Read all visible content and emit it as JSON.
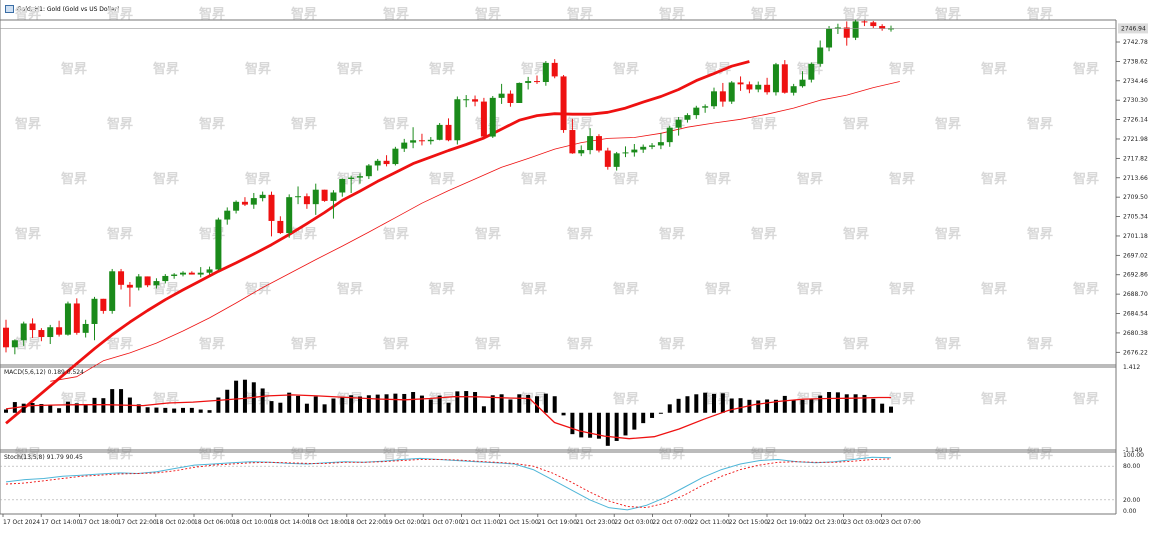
{
  "title": "Gold, H1:  Gold (Gold vs US Dollar)",
  "current_price_label": "2746.94",
  "macd_label": "MACD(5,6,12) 0.189 0.524",
  "stoch_label": "Stoch(13,5,8) 91.79 90.45",
  "watermark_text": "智昇",
  "colors": {
    "bull": "#1a8a1a",
    "bear": "#ee1111",
    "ma": "#ee1111",
    "macd_bar": "#000000",
    "signal": "#ee1111",
    "stoch_main": "#4fb6d8",
    "stoch_signal": "#ee1111",
    "grid": "#888888"
  },
  "chart_data": [
    {
      "type": "candlestick",
      "title": "Gold, H1",
      "y_ticks": [
        "2742.78",
        "2738.62",
        "2734.46",
        "2730.30",
        "2726.14",
        "2721.98",
        "2717.82",
        "2713.66",
        "2709.50",
        "2705.34",
        "2701.18",
        "2697.02",
        "2692.86",
        "2688.70",
        "2684.54",
        "2680.38",
        "2676.22"
      ],
      "ylim": [
        2673.5,
        2747.5
      ],
      "x_labels": [
        "17 Oct 2024",
        "17 Oct 14:00",
        "17 Oct 18:00",
        "17 Oct 22:00",
        "18 Oct 02:00",
        "18 Oct 06:00",
        "18 Oct 10:00",
        "18 Oct 14:00",
        "18 Oct 18:00",
        "18 Oct 22:00",
        "19 Oct 02:00",
        "21 Oct 07:00",
        "21 Oct 11:00",
        "21 Oct 15:00",
        "21 Oct 19:00",
        "21 Oct 23:00",
        "22 Oct 03:00",
        "22 Oct 07:00",
        "22 Oct 11:00",
        "22 Oct 15:00",
        "22 Oct 19:00",
        "22 Oct 23:00",
        "23 Oct 03:00",
        "23 Oct 07:00"
      ],
      "candles": [
        [
          2681.5,
          2683.2,
          2676.2,
          2677.3
        ],
        [
          2677.3,
          2679.0,
          2675.8,
          2678.8
        ],
        [
          2678.8,
          2682.8,
          2677.6,
          2682.4
        ],
        [
          2682.4,
          2683.5,
          2679.3,
          2681.0
        ],
        [
          2681.0,
          2681.4,
          2678.6,
          2679.5
        ],
        [
          2679.5,
          2682.1,
          2678.0,
          2681.6
        ],
        [
          2681.6,
          2683.0,
          2679.6,
          2680.0
        ],
        [
          2680.0,
          2687.1,
          2679.8,
          2686.7
        ],
        [
          2686.7,
          2687.8,
          2680.0,
          2680.4
        ],
        [
          2680.4,
          2683.2,
          2679.4,
          2682.3
        ],
        [
          2682.3,
          2688.1,
          2678.8,
          2687.7
        ],
        [
          2687.7,
          2687.7,
          2684.5,
          2685.1
        ],
        [
          2685.1,
          2694.1,
          2684.5,
          2693.6
        ],
        [
          2693.6,
          2694.1,
          2689.7,
          2690.7
        ],
        [
          2690.7,
          2691.3,
          2686.0,
          2690.1
        ],
        [
          2690.1,
          2693.0,
          2689.5,
          2692.5
        ],
        [
          2692.5,
          2692.5,
          2690.2,
          2690.6
        ],
        [
          2690.6,
          2692.1,
          2689.9,
          2691.5
        ],
        [
          2691.5,
          2693.0,
          2691.0,
          2692.6
        ],
        [
          2692.6,
          2693.2,
          2692.0,
          2692.9
        ],
        [
          2692.9,
          2693.6,
          2692.5,
          2693.3
        ],
        [
          2693.3,
          2693.6,
          2692.9,
          2692.9
        ],
        [
          2692.9,
          2694.5,
          2692.3,
          2693.3
        ],
        [
          2693.3,
          2694.6,
          2692.9,
          2694.0
        ],
        [
          2694.0,
          2705.1,
          2693.8,
          2704.7
        ],
        [
          2704.7,
          2707.3,
          2703.6,
          2706.6
        ],
        [
          2706.6,
          2708.8,
          2706.0,
          2708.5
        ],
        [
          2708.5,
          2709.5,
          2707.6,
          2707.9
        ],
        [
          2707.9,
          2710.4,
          2707.0,
          2709.3
        ],
        [
          2709.3,
          2710.7,
          2708.6,
          2710.0
        ],
        [
          2710.0,
          2710.7,
          2701.1,
          2704.4
        ],
        [
          2704.4,
          2705.4,
          2701.6,
          2701.8
        ],
        [
          2701.8,
          2710.1,
          2700.8,
          2709.5
        ],
        [
          2709.5,
          2711.8,
          2708.0,
          2709.7
        ],
        [
          2709.7,
          2710.3,
          2707.0,
          2708.0
        ],
        [
          2708.0,
          2712.4,
          2705.7,
          2711.1
        ],
        [
          2711.1,
          2711.1,
          2708.5,
          2708.7
        ],
        [
          2708.7,
          2711.0,
          2704.9,
          2710.5
        ],
        [
          2710.5,
          2713.5,
          2709.6,
          2713.4
        ],
        [
          2713.4,
          2714.1,
          2710.4,
          2713.7
        ],
        [
          2713.7,
          2714.6,
          2712.4,
          2714.0
        ],
        [
          2714.0,
          2716.6,
          2713.4,
          2716.3
        ],
        [
          2716.3,
          2717.7,
          2715.2,
          2717.3
        ],
        [
          2717.3,
          2718.5,
          2716.1,
          2716.6
        ],
        [
          2716.6,
          2720.3,
          2716.3,
          2719.9
        ],
        [
          2719.9,
          2722.0,
          2719.2,
          2721.2
        ],
        [
          2721.2,
          2724.5,
          2720.0,
          2721.7
        ],
        [
          2721.7,
          2723.1,
          2720.6,
          2721.5
        ],
        [
          2721.5,
          2722.4,
          2720.8,
          2721.8
        ],
        [
          2721.8,
          2725.4,
          2721.7,
          2725.0
        ],
        [
          2725.0,
          2726.4,
          2721.5,
          2721.7
        ],
        [
          2721.7,
          2731.1,
          2720.8,
          2730.5
        ],
        [
          2730.5,
          2731.4,
          2728.8,
          2730.5
        ],
        [
          2730.5,
          2731.3,
          2729.0,
          2730.0
        ],
        [
          2730.0,
          2730.8,
          2722.2,
          2722.5
        ],
        [
          2722.5,
          2731.2,
          2722.2,
          2730.8
        ],
        [
          2730.8,
          2733.8,
          2729.5,
          2731.7
        ],
        [
          2731.7,
          2732.4,
          2728.9,
          2729.7
        ],
        [
          2729.7,
          2734.1,
          2729.7,
          2734.0
        ],
        [
          2734.0,
          2735.3,
          2732.6,
          2734.4
        ],
        [
          2734.4,
          2735.6,
          2733.8,
          2734.2
        ],
        [
          2734.2,
          2738.7,
          2733.4,
          2738.3
        ],
        [
          2738.3,
          2739.1,
          2735.0,
          2735.4
        ],
        [
          2735.4,
          2735.7,
          2723.3,
          2723.9
        ],
        [
          2723.9,
          2726.3,
          2718.8,
          2718.9
        ],
        [
          2718.9,
          2720.6,
          2718.3,
          2719.6
        ],
        [
          2719.6,
          2724.3,
          2718.7,
          2722.6
        ],
        [
          2722.6,
          2723.0,
          2719.1,
          2719.5
        ],
        [
          2719.5,
          2720.1,
          2715.4,
          2716.0
        ],
        [
          2716.0,
          2719.2,
          2715.2,
          2718.9
        ],
        [
          2718.9,
          2720.4,
          2718.1,
          2719.1
        ],
        [
          2719.1,
          2720.9,
          2718.2,
          2719.7
        ],
        [
          2719.7,
          2720.8,
          2719.0,
          2720.3
        ],
        [
          2720.3,
          2721.1,
          2719.8,
          2720.6
        ],
        [
          2720.6,
          2723.3,
          2719.8,
          2721.3
        ],
        [
          2721.3,
          2724.8,
          2720.3,
          2724.4
        ],
        [
          2724.4,
          2726.7,
          2722.7,
          2726.1
        ],
        [
          2726.1,
          2727.5,
          2725.5,
          2727.1
        ],
        [
          2727.1,
          2729.1,
          2726.3,
          2728.7
        ],
        [
          2728.7,
          2729.4,
          2727.6,
          2729.0
        ],
        [
          2729.0,
          2733.0,
          2728.4,
          2732.2
        ],
        [
          2732.2,
          2734.0,
          2728.9,
          2730.0
        ],
        [
          2730.0,
          2734.4,
          2729.5,
          2734.1
        ],
        [
          2734.1,
          2735.4,
          2732.3,
          2733.7
        ],
        [
          2733.7,
          2734.3,
          2731.8,
          2732.6
        ],
        [
          2732.6,
          2734.3,
          2732.0,
          2733.6
        ],
        [
          2733.6,
          2735.1,
          2731.5,
          2732.0
        ],
        [
          2732.0,
          2738.3,
          2731.3,
          2738.0
        ],
        [
          2738.0,
          2738.9,
          2731.7,
          2731.9
        ],
        [
          2731.9,
          2733.8,
          2731.3,
          2733.3
        ],
        [
          2733.3,
          2736.5,
          2733.0,
          2734.7
        ],
        [
          2734.7,
          2738.4,
          2734.1,
          2738.1
        ],
        [
          2738.1,
          2743.1,
          2737.5,
          2741.6
        ],
        [
          2741.6,
          2746.2,
          2740.8,
          2745.6
        ],
        [
          2745.6,
          2746.7,
          2744.5,
          2745.9
        ],
        [
          2745.9,
          2747.2,
          2742.0,
          2743.7
        ],
        [
          2743.7,
          2747.6,
          2743.2,
          2747.2
        ],
        [
          2747.2,
          2747.4,
          2746.2,
          2747.0
        ],
        [
          2747.0,
          2747.3,
          2745.8,
          2746.2
        ],
        [
          2746.2,
          2746.6,
          2745.2,
          2745.6
        ],
        [
          2745.6,
          2746.3,
          2745.0,
          2745.7
        ]
      ],
      "ma_fast": [
        2661.0,
        2664.2,
        2667.4,
        2670.6,
        2673.8,
        2677.0,
        2680.0,
        2682.7,
        2685.2,
        2687.5,
        2689.6,
        2691.6,
        2693.6,
        2695.4,
        2697.3,
        2699.3,
        2701.5,
        2703.8,
        2706.2,
        2708.8,
        2710.8,
        2712.9,
        2714.8,
        2716.7,
        2718.1,
        2719.5,
        2720.8,
        2722.2,
        2724.1,
        2726.0,
        2727.0,
        2727.4,
        2727.3,
        2727.3,
        2727.7,
        2728.6,
        2729.9,
        2731.1,
        2732.6,
        2734.5,
        2736.0,
        2737.6,
        2738.6
      ],
      "ma_fast_x": [
        0,
        2,
        4,
        6,
        8,
        10,
        12,
        14,
        16,
        18,
        20,
        22,
        24,
        26,
        28,
        30,
        32,
        34,
        36,
        38,
        40,
        42,
        44,
        46,
        48,
        50,
        52,
        54,
        56,
        58,
        60,
        62,
        64,
        66,
        68,
        70,
        72,
        74,
        76,
        78,
        80,
        82,
        84
      ],
      "ma_slow": [
        2670.0,
        2671.0,
        2674.4,
        2676.1,
        2678.2,
        2680.8,
        2683.6,
        2686.8,
        2690.1,
        2693.1,
        2696.1,
        2699.0,
        2702.0,
        2705.1,
        2708.2,
        2710.9,
        2713.4,
        2715.9,
        2717.8,
        2719.8,
        2721.2,
        2722.1,
        2722.3,
        2723.2,
        2724.5,
        2725.4,
        2726.2,
        2727.3,
        2728.6,
        2730.3,
        2731.4,
        2733.0,
        2734.3
      ],
      "ma_slow_x": [
        5,
        8,
        11,
        14,
        17,
        20,
        23,
        26,
        29,
        32,
        35,
        38,
        41,
        44,
        47,
        50,
        53,
        56,
        59,
        62,
        65,
        68,
        71,
        74,
        77,
        80,
        83,
        86,
        89,
        92,
        95,
        98,
        101
      ]
    },
    {
      "type": "bar",
      "title": "MACD(5,6,12) 0.189 0.524",
      "ylim": [
        -1.149,
        1.412
      ],
      "y_ticks": [
        "1.412",
        "-1.149"
      ],
      "values": [
        0.1,
        0.33,
        0.28,
        0.3,
        0.27,
        0.23,
        0.14,
        0.34,
        0.29,
        0.24,
        0.46,
        0.45,
        0.73,
        0.73,
        0.47,
        0.26,
        0.17,
        0.16,
        0.15,
        0.13,
        0.15,
        0.15,
        0.1,
        0.08,
        0.47,
        0.71,
        0.99,
        1.02,
        0.94,
        0.75,
        0.36,
        0.31,
        0.62,
        0.52,
        0.28,
        0.5,
        0.26,
        0.44,
        0.5,
        0.54,
        0.5,
        0.54,
        0.56,
        0.57,
        0.59,
        0.58,
        0.64,
        0.53,
        0.41,
        0.53,
        0.31,
        0.66,
        0.67,
        0.64,
        0.2,
        0.54,
        0.57,
        0.41,
        0.57,
        0.55,
        0.51,
        0.59,
        0.51,
        -0.08,
        -0.66,
        -0.76,
        -0.77,
        -0.8,
        -1.02,
        -0.87,
        -0.7,
        -0.52,
        -0.32,
        -0.16,
        -0.02,
        0.26,
        0.43,
        0.51,
        0.57,
        0.62,
        0.58,
        0.6,
        0.44,
        0.45,
        0.4,
        0.38,
        0.41,
        0.4,
        0.52,
        0.38,
        0.4,
        0.44,
        0.53,
        0.64,
        0.63,
        0.57,
        0.57,
        0.55,
        0.43,
        0.28,
        0.19
      ],
      "signal": [
        0.12,
        0.22,
        0.24,
        0.25,
        0.25,
        0.23,
        0.22,
        0.3,
        0.33,
        0.38,
        0.44,
        0.52,
        0.55,
        0.52,
        0.46,
        0.42,
        0.4,
        0.44,
        0.5,
        0.49,
        0.46,
        0.44,
        -0.3,
        -0.56,
        -0.72,
        -0.8,
        -0.74,
        -0.5,
        -0.2,
        0.08,
        0.25,
        0.35,
        0.42,
        0.44,
        0.45,
        0.47,
        0.47
      ],
      "signal_x": [
        0,
        4,
        8,
        12,
        16,
        20,
        22,
        26,
        30,
        34,
        38,
        42,
        46,
        50,
        56,
        60,
        64,
        68,
        72,
        76,
        80,
        84,
        88,
        92,
        96,
        100,
        104,
        108,
        112,
        116,
        120,
        124,
        128,
        132,
        136,
        140,
        142
      ]
    },
    {
      "type": "line",
      "title": "Stoch(13,5,8) 91.79 90.45",
      "ylim": [
        0,
        100
      ],
      "y_ticks": [
        "100.00",
        "80.00",
        "20.00",
        "0.00"
      ],
      "series": [
        {
          "values": [
            52,
            56,
            58,
            62,
            64,
            66,
            68,
            67,
            70,
            76,
            82,
            84,
            86,
            88,
            87,
            85,
            84,
            86,
            88,
            87,
            89,
            92,
            94,
            92,
            90,
            88,
            86,
            84,
            74,
            56,
            38,
            20,
            6,
            2,
            10,
            24,
            42,
            60,
            74,
            84,
            90,
            92,
            88,
            86,
            88,
            92,
            96,
            95
          ]
        },
        {
          "values": [
            48,
            50,
            54,
            58,
            62,
            64,
            66,
            67,
            68,
            72,
            78,
            82,
            84,
            86,
            87,
            86,
            85,
            85,
            87,
            87,
            88,
            90,
            92,
            92,
            91,
            89,
            87,
            85,
            80,
            68,
            52,
            34,
            18,
            8,
            6,
            14,
            28,
            46,
            62,
            74,
            82,
            87,
            88,
            87,
            87,
            89,
            92,
            93
          ]
        }
      ]
    }
  ]
}
